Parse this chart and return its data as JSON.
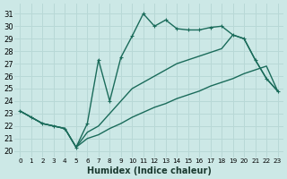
{
  "xlabel": "Humidex (Indice chaleur)",
  "bg_color": "#cce8e6",
  "line_color": "#1a6b5a",
  "grid_color": "#b8d8d6",
  "x_ticks": [
    0,
    1,
    2,
    3,
    4,
    5,
    6,
    7,
    8,
    9,
    10,
    11,
    12,
    13,
    14,
    15,
    16,
    17,
    18,
    19,
    20,
    21,
    22,
    23
  ],
  "y_ticks": [
    20,
    21,
    22,
    23,
    24,
    25,
    26,
    27,
    28,
    29,
    30,
    31
  ],
  "ylim": [
    19.5,
    31.8
  ],
  "xlim": [
    -0.5,
    23.5
  ],
  "line_jagged_x": [
    0,
    1,
    2,
    3,
    4,
    5,
    6,
    7,
    8,
    9,
    10,
    11,
    12,
    13,
    14,
    15,
    16,
    17,
    18,
    19,
    20,
    21,
    22,
    23
  ],
  "line_jagged_y": [
    23.2,
    22.7,
    22.2,
    22.0,
    21.8,
    20.3,
    22.2,
    27.3,
    24.0,
    27.5,
    29.2,
    31.0,
    30.0,
    30.5,
    29.8,
    29.7,
    29.7,
    29.9,
    30.0,
    29.3,
    29.0,
    27.3,
    25.8,
    24.8
  ],
  "line_upper_x": [
    0,
    1,
    2,
    3,
    4,
    5,
    6,
    7,
    8,
    9,
    10,
    11,
    12,
    13,
    14,
    15,
    16,
    17,
    18,
    19,
    20,
    21,
    22,
    23
  ],
  "line_upper_y": [
    23.2,
    22.7,
    22.2,
    22.0,
    21.8,
    20.3,
    21.5,
    22.0,
    23.0,
    24.0,
    25.0,
    25.5,
    26.0,
    26.5,
    27.0,
    27.3,
    27.6,
    27.9,
    28.2,
    29.3,
    29.0,
    27.3,
    25.8,
    24.8
  ],
  "line_lower_x": [
    0,
    1,
    2,
    3,
    4,
    5,
    6,
    7,
    8,
    9,
    10,
    11,
    12,
    13,
    14,
    15,
    16,
    17,
    18,
    19,
    20,
    21,
    22,
    23
  ],
  "line_lower_y": [
    23.2,
    22.7,
    22.2,
    22.0,
    21.8,
    20.3,
    21.0,
    21.3,
    21.8,
    22.2,
    22.7,
    23.1,
    23.5,
    23.8,
    24.2,
    24.5,
    24.8,
    25.2,
    25.5,
    25.8,
    26.2,
    26.5,
    26.8,
    24.8
  ],
  "linewidth": 1.0,
  "markersize": 3.5
}
